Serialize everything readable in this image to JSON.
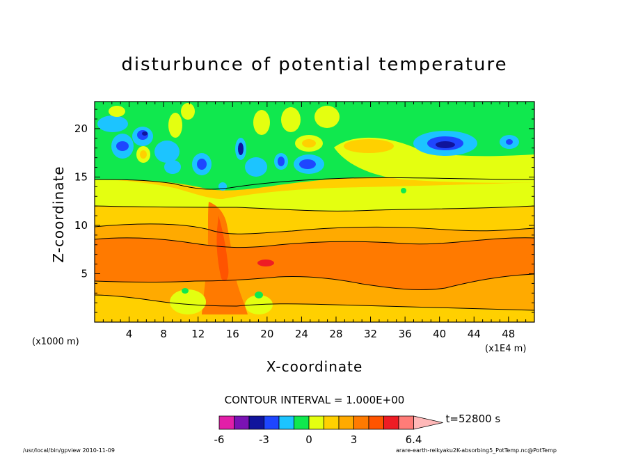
{
  "chart_data": {
    "type": "heatmap",
    "title": "disturbunce of potential temperature",
    "xlabel": "X-coordinate",
    "ylabel": "Z-coordinate",
    "x_unit_left": "(x1000 m)",
    "x_unit_right": "(x1E4 m)",
    "xlim": [
      0,
      51
    ],
    "ylim": [
      0,
      22.8
    ],
    "x_ticks": [
      4,
      8,
      12,
      16,
      20,
      24,
      28,
      32,
      36,
      40,
      44,
      48
    ],
    "y_ticks": [
      5,
      10,
      15,
      20
    ],
    "contour_interval": "CONTOUR INTERVAL = 1.000E+00",
    "colorbar": {
      "tick_labels": [
        "-6",
        "-3",
        "0",
        "3",
        "6.4"
      ],
      "levels": [
        -6,
        -5,
        -4,
        -3,
        -2,
        -1,
        0,
        1,
        2,
        3,
        4,
        5,
        6
      ],
      "colors": [
        "#e21ea8",
        "#7a12b4",
        "#10149c",
        "#1e46ff",
        "#1cc4ff",
        "#10e84e",
        "#e4ff10",
        "#ffd000",
        "#ffaa00",
        "#ff7a00",
        "#ff5400",
        "#ee1c24",
        "#ff7c78",
        "#ffb8b8"
      ],
      "time_label": "t=52800 s"
    }
  },
  "footer": {
    "left": "/usr/local/bin/gpview  2010-11-09",
    "right": "arare-earth-reikyaku2K-absorbing5_PotTemp.nc@PotTemp"
  }
}
